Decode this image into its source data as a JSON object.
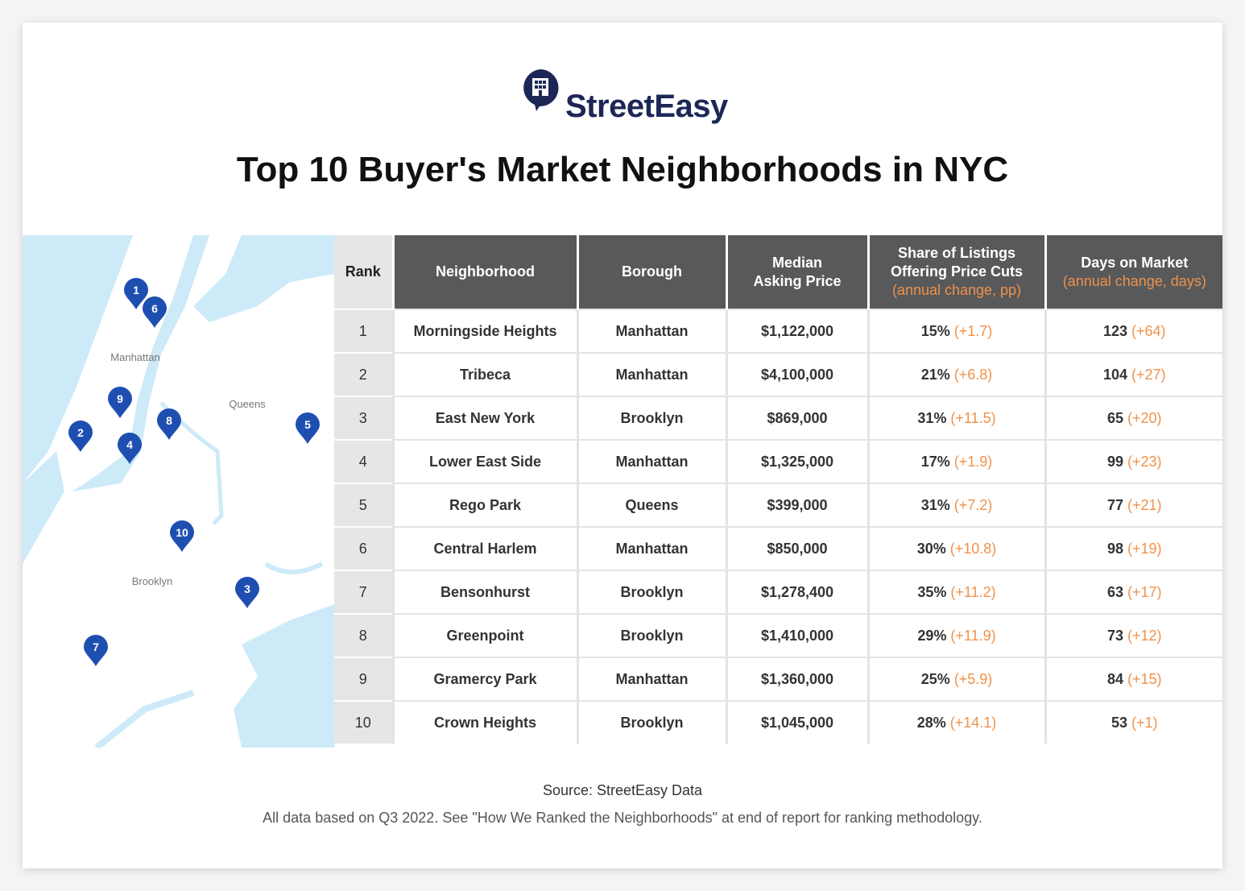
{
  "header": {
    "logo": "StreetEasy",
    "title": "Top 10 Buyer's Market Neighborhoods in NYC"
  },
  "map": {
    "areas": [
      "Manhattan",
      "Queens",
      "Brooklyn"
    ],
    "pins": [
      "1",
      "2",
      "3",
      "4",
      "5",
      "6",
      "7",
      "8",
      "9",
      "10"
    ]
  },
  "table": {
    "columns": [
      {
        "lines": [
          "Rank"
        ]
      },
      {
        "lines": [
          "Neighborhood"
        ]
      },
      {
        "lines": [
          "Borough"
        ]
      },
      {
        "lines": [
          "Median",
          "Asking Price"
        ]
      },
      {
        "lines": [
          "Share of Listings",
          "Offering Price Cuts"
        ],
        "note": "(annual change, pp)"
      },
      {
        "lines": [
          "Days on Market"
        ],
        "note": "(annual change, days)"
      }
    ],
    "rows": [
      {
        "rank": 1,
        "neighborhood": "Morningside Heights",
        "borough": "Manhattan",
        "price": "$1,122,000",
        "share": "15%",
        "share_change": "(+1.7)",
        "days": "123",
        "days_change": "(+64)"
      },
      {
        "rank": 2,
        "neighborhood": "Tribeca",
        "borough": "Manhattan",
        "price": "$4,100,000",
        "share": "21%",
        "share_change": "(+6.8)",
        "days": "104",
        "days_change": "(+27)"
      },
      {
        "rank": 3,
        "neighborhood": "East New York",
        "borough": "Brooklyn",
        "price": "$869,000",
        "share": "31%",
        "share_change": "(+11.5)",
        "days": "65",
        "days_change": "(+20)"
      },
      {
        "rank": 4,
        "neighborhood": "Lower East Side",
        "borough": "Manhattan",
        "price": "$1,325,000",
        "share": "17%",
        "share_change": "(+1.9)",
        "days": "99",
        "days_change": "(+23)"
      },
      {
        "rank": 5,
        "neighborhood": "Rego Park",
        "borough": "Queens",
        "price": "$399,000",
        "share": "31%",
        "share_change": "(+7.2)",
        "days": "77",
        "days_change": "(+21)"
      },
      {
        "rank": 6,
        "neighborhood": "Central Harlem",
        "borough": "Manhattan",
        "price": "$850,000",
        "share": "30%",
        "share_change": "(+10.8)",
        "days": "98",
        "days_change": "(+19)"
      },
      {
        "rank": 7,
        "neighborhood": "Bensonhurst",
        "borough": "Brooklyn",
        "price": "$1,278,400",
        "share": "35%",
        "share_change": "(+11.2)",
        "days": "63",
        "days_change": "(+17)"
      },
      {
        "rank": 8,
        "neighborhood": "Greenpoint",
        "borough": "Brooklyn",
        "price": "$1,410,000",
        "share": "29%",
        "share_change": "(+11.9)",
        "days": "73",
        "days_change": "(+12)"
      },
      {
        "rank": 9,
        "neighborhood": "Gramercy Park",
        "borough": "Manhattan",
        "price": "$1,360,000",
        "share": "25%",
        "share_change": "(+5.9)",
        "days": "84",
        "days_change": "(+15)"
      },
      {
        "rank": 10,
        "neighborhood": "Crown Heights",
        "borough": "Brooklyn",
        "price": "$1,045,000",
        "share": "28%",
        "share_change": "(+14.1)",
        "days": "53",
        "days_change": "(+1)"
      }
    ]
  },
  "footer": {
    "source": "Source: StreetEasy Data",
    "note": "All data based on Q3 2022. See \"How We Ranked the Neighborhoods\" at end of report for ranking methodology."
  }
}
